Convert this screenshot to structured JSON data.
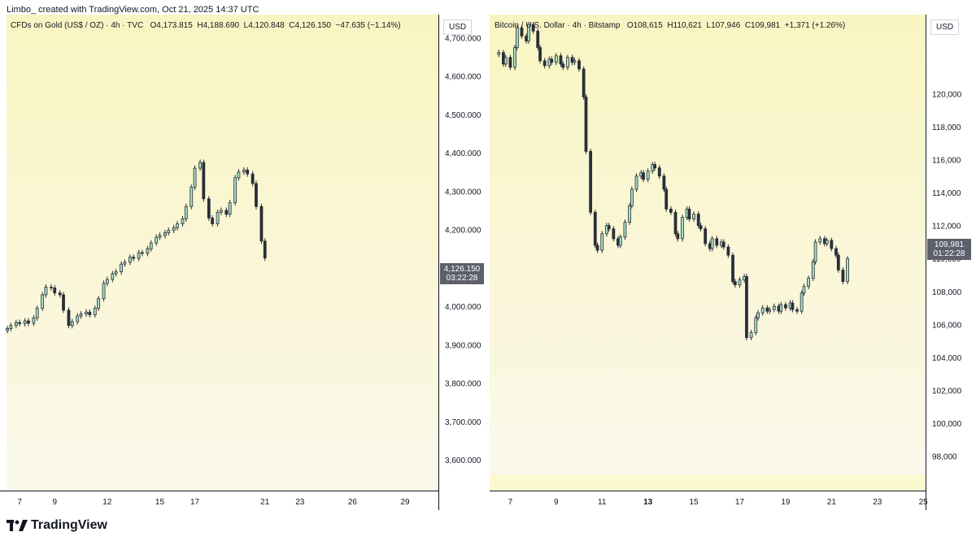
{
  "header": {
    "attribution": "Limbo_ created with TradingView.com, Oct 21, 2025 14:37 UTC"
  },
  "footer": {
    "brand": "TradingView"
  },
  "colors": {
    "up": "#a5e0c7",
    "down": "#2a2e39",
    "wick": "#2a2e39",
    "bg_top": "#f9f5c2",
    "bg_bottom": "#faf7e6"
  },
  "chart_data": [
    {
      "type": "candlestick",
      "title": "CFDs on Gold (US$ / OZ) · 4h · TVC",
      "ohlc_text": {
        "open": "O4,173.815",
        "high": "H4,188.690",
        "low": "L4,120.848",
        "close": "C4,126.150",
        "change": "−47.635 (−1.14%)"
      },
      "currency": "USD",
      "last_price": "4,126.150",
      "countdown": "03:22:28",
      "ylim": [
        3520,
        4760
      ],
      "y_ticks": [
        3600,
        3700,
        3800,
        3900,
        4000,
        4100,
        4200,
        4300,
        4400,
        4500,
        4600,
        4700
      ],
      "y_tick_labels": [
        "3,600.000",
        "3,700.000",
        "3,800.000",
        "3,900.000",
        "4,000.000",
        "4,100.000",
        "4,200.000",
        "4,300.000",
        "4,400.000",
        "4,500.000",
        "4,600.000",
        "4,700.000"
      ],
      "x_ticks": [
        7,
        9,
        12,
        15,
        17,
        21,
        23,
        26,
        29
      ],
      "x_tick_labels": [
        "7",
        "9",
        "12",
        "15",
        "17",
        "21",
        "23",
        "26",
        "29"
      ],
      "x_range": [
        6.25,
        30.9
      ],
      "close_series": [
        {
          "d": 6.3,
          "c": 3942
        },
        {
          "d": 6.5,
          "c": 3950
        },
        {
          "d": 6.8,
          "c": 3958
        },
        {
          "d": 7.0,
          "c": 3955
        },
        {
          "d": 7.3,
          "c": 3962
        },
        {
          "d": 7.5,
          "c": 3956
        },
        {
          "d": 7.8,
          "c": 3970
        },
        {
          "d": 8.0,
          "c": 3995
        },
        {
          "d": 8.3,
          "c": 4030
        },
        {
          "d": 8.5,
          "c": 4050
        },
        {
          "d": 8.8,
          "c": 4048
        },
        {
          "d": 9.0,
          "c": 4035
        },
        {
          "d": 9.3,
          "c": 4030
        },
        {
          "d": 9.5,
          "c": 3990
        },
        {
          "d": 9.8,
          "c": 3950
        },
        {
          "d": 10.0,
          "c": 3960
        },
        {
          "d": 10.3,
          "c": 3975
        },
        {
          "d": 10.5,
          "c": 3980
        },
        {
          "d": 10.8,
          "c": 3985
        },
        {
          "d": 11.0,
          "c": 3978
        },
        {
          "d": 11.3,
          "c": 3995
        },
        {
          "d": 11.5,
          "c": 4020
        },
        {
          "d": 11.8,
          "c": 4060
        },
        {
          "d": 12.0,
          "c": 4070
        },
        {
          "d": 12.3,
          "c": 4085
        },
        {
          "d": 12.5,
          "c": 4090
        },
        {
          "d": 12.8,
          "c": 4110
        },
        {
          "d": 13.0,
          "c": 4115
        },
        {
          "d": 13.3,
          "c": 4128
        },
        {
          "d": 13.5,
          "c": 4125
        },
        {
          "d": 13.8,
          "c": 4140
        },
        {
          "d": 14.0,
          "c": 4138
        },
        {
          "d": 14.3,
          "c": 4150
        },
        {
          "d": 14.5,
          "c": 4165
        },
        {
          "d": 14.8,
          "c": 4180
        },
        {
          "d": 15.0,
          "c": 4185
        },
        {
          "d": 15.3,
          "c": 4192
        },
        {
          "d": 15.5,
          "c": 4198
        },
        {
          "d": 15.8,
          "c": 4205
        },
        {
          "d": 16.0,
          "c": 4215
        },
        {
          "d": 16.3,
          "c": 4228
        },
        {
          "d": 16.5,
          "c": 4260
        },
        {
          "d": 16.8,
          "c": 4310
        },
        {
          "d": 17.0,
          "c": 4360
        },
        {
          "d": 17.3,
          "c": 4375
        },
        {
          "d": 17.5,
          "c": 4280
        },
        {
          "d": 17.8,
          "c": 4230
        },
        {
          "d": 18.0,
          "c": 4215
        },
        {
          "d": 18.3,
          "c": 4245
        },
        {
          "d": 18.5,
          "c": 4250
        },
        {
          "d": 18.8,
          "c": 4240
        },
        {
          "d": 19.0,
          "c": 4270
        },
        {
          "d": 19.3,
          "c": 4335
        },
        {
          "d": 19.5,
          "c": 4350
        },
        {
          "d": 19.8,
          "c": 4355
        },
        {
          "d": 20.0,
          "c": 4345
        },
        {
          "d": 20.3,
          "c": 4320
        },
        {
          "d": 20.5,
          "c": 4260
        },
        {
          "d": 20.8,
          "c": 4170
        },
        {
          "d": 21.0,
          "c": 4126
        }
      ]
    },
    {
      "type": "candlestick",
      "title": "Bitcoin / U.S. Dollar · 4h · Bitstamp",
      "ohlc_text": {
        "open": "O108,615",
        "high": "H110,621",
        "low": "L107,946",
        "close": "C109,981",
        "change": "+1,371 (+1.26%)"
      },
      "currency": "USD",
      "last_price": "109,981",
      "countdown": "01:22:28",
      "ylim": [
        96900,
        124800
      ],
      "y_ticks": [
        98000,
        100000,
        102000,
        104000,
        106000,
        108000,
        110000,
        112000,
        114000,
        116000,
        118000,
        120000
      ],
      "y_tick_labels": [
        "98,000",
        "100,000",
        "102,000",
        "104,000",
        "106,000",
        "108,000",
        "110,000",
        "112,000",
        "114,000",
        "116,000",
        "118,000",
        "120,000"
      ],
      "x_ticks": [
        7,
        9,
        11,
        13,
        15,
        17,
        19,
        21,
        23,
        25
      ],
      "x_tick_labels": [
        "7",
        "9",
        "11",
        "13",
        "15",
        "17",
        "19",
        "21",
        "23",
        "25"
      ],
      "x_range": [
        6.1,
        25.1
      ],
      "close_series": [
        {
          "d": 6.5,
          "c": 122500
        },
        {
          "d": 6.7,
          "c": 121800
        },
        {
          "d": 6.8,
          "c": 122200
        },
        {
          "d": 7.0,
          "c": 121600
        },
        {
          "d": 7.2,
          "c": 122800
        },
        {
          "d": 7.3,
          "c": 124000
        },
        {
          "d": 7.5,
          "c": 123500
        },
        {
          "d": 7.7,
          "c": 123200
        },
        {
          "d": 7.8,
          "c": 124200
        },
        {
          "d": 8.0,
          "c": 123800
        },
        {
          "d": 8.2,
          "c": 122800
        },
        {
          "d": 8.3,
          "c": 122000
        },
        {
          "d": 8.5,
          "c": 121700
        },
        {
          "d": 8.7,
          "c": 122100
        },
        {
          "d": 8.8,
          "c": 121900
        },
        {
          "d": 9.0,
          "c": 122300
        },
        {
          "d": 9.2,
          "c": 121800
        },
        {
          "d": 9.3,
          "c": 121600
        },
        {
          "d": 9.5,
          "c": 122200
        },
        {
          "d": 9.7,
          "c": 121900
        },
        {
          "d": 9.8,
          "c": 122000
        },
        {
          "d": 10.0,
          "c": 121500
        },
        {
          "d": 10.2,
          "c": 119800
        },
        {
          "d": 10.3,
          "c": 116500
        },
        {
          "d": 10.5,
          "c": 112800
        },
        {
          "d": 10.7,
          "c": 110800
        },
        {
          "d": 10.8,
          "c": 110500
        },
        {
          "d": 11.0,
          "c": 111500
        },
        {
          "d": 11.2,
          "c": 112000
        },
        {
          "d": 11.3,
          "c": 111800
        },
        {
          "d": 11.5,
          "c": 111200
        },
        {
          "d": 11.7,
          "c": 110800
        },
        {
          "d": 11.8,
          "c": 111300
        },
        {
          "d": 12.0,
          "c": 112200
        },
        {
          "d": 12.2,
          "c": 113200
        },
        {
          "d": 12.3,
          "c": 114200
        },
        {
          "d": 12.5,
          "c": 115000
        },
        {
          "d": 12.7,
          "c": 115200
        },
        {
          "d": 12.8,
          "c": 114800
        },
        {
          "d": 13.0,
          "c": 115300
        },
        {
          "d": 13.2,
          "c": 115700
        },
        {
          "d": 13.3,
          "c": 115500
        },
        {
          "d": 13.5,
          "c": 115000
        },
        {
          "d": 13.7,
          "c": 114200
        },
        {
          "d": 13.8,
          "c": 113000
        },
        {
          "d": 14.0,
          "c": 112800
        },
        {
          "d": 14.2,
          "c": 111500
        },
        {
          "d": 14.3,
          "c": 111200
        },
        {
          "d": 14.5,
          "c": 112500
        },
        {
          "d": 14.7,
          "c": 113000
        },
        {
          "d": 14.8,
          "c": 112400
        },
        {
          "d": 15.0,
          "c": 112700
        },
        {
          "d": 15.2,
          "c": 112000
        },
        {
          "d": 15.3,
          "c": 111800
        },
        {
          "d": 15.5,
          "c": 110900
        },
        {
          "d": 15.7,
          "c": 110600
        },
        {
          "d": 15.8,
          "c": 111200
        },
        {
          "d": 16.0,
          "c": 110800
        },
        {
          "d": 16.2,
          "c": 111000
        },
        {
          "d": 16.3,
          "c": 110700
        },
        {
          "d": 16.5,
          "c": 110200
        },
        {
          "d": 16.7,
          "c": 108600
        },
        {
          "d": 16.8,
          "c": 108400
        },
        {
          "d": 17.0,
          "c": 108700
        },
        {
          "d": 17.2,
          "c": 108900
        },
        {
          "d": 17.3,
          "c": 105200
        },
        {
          "d": 17.5,
          "c": 105500
        },
        {
          "d": 17.7,
          "c": 106400
        },
        {
          "d": 17.8,
          "c": 106700
        },
        {
          "d": 18.0,
          "c": 107000
        },
        {
          "d": 18.2,
          "c": 106800
        },
        {
          "d": 18.3,
          "c": 106900
        },
        {
          "d": 18.5,
          "c": 107100
        },
        {
          "d": 18.7,
          "c": 106800
        },
        {
          "d": 18.8,
          "c": 107200
        },
        {
          "d": 19.0,
          "c": 107000
        },
        {
          "d": 19.2,
          "c": 107300
        },
        {
          "d": 19.3,
          "c": 106900
        },
        {
          "d": 19.5,
          "c": 106800
        },
        {
          "d": 19.7,
          "c": 107900
        },
        {
          "d": 19.8,
          "c": 108300
        },
        {
          "d": 20.0,
          "c": 108800
        },
        {
          "d": 20.2,
          "c": 109800
        },
        {
          "d": 20.3,
          "c": 111000
        },
        {
          "d": 20.5,
          "c": 111200
        },
        {
          "d": 20.7,
          "c": 110900
        },
        {
          "d": 20.8,
          "c": 111100
        },
        {
          "d": 21.0,
          "c": 110600
        },
        {
          "d": 21.2,
          "c": 110200
        },
        {
          "d": 21.3,
          "c": 109300
        },
        {
          "d": 21.5,
          "c": 108600
        },
        {
          "d": 21.7,
          "c": 109981
        }
      ]
    }
  ]
}
